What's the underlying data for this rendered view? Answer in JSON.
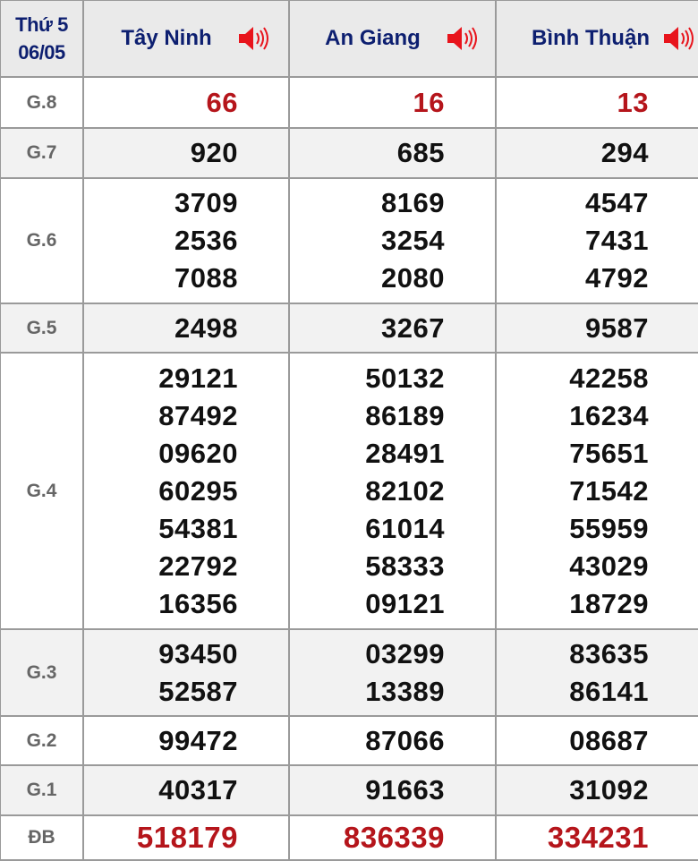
{
  "header": {
    "day": "Thứ 5",
    "date": "06/05",
    "provinces": [
      "Tây Ninh",
      "An Giang",
      "Bình Thuận"
    ],
    "speaker_icon": "speaker-icon",
    "header_color": "#0d1f70",
    "highlight_color": "#b5151b"
  },
  "rows": [
    {
      "label": "G.8",
      "values": [
        [
          "66"
        ],
        [
          "16"
        ],
        [
          "13"
        ]
      ],
      "highlight": true
    },
    {
      "label": "G.7",
      "values": [
        [
          "920"
        ],
        [
          "685"
        ],
        [
          "294"
        ]
      ]
    },
    {
      "label": "G.6",
      "values": [
        [
          "3709",
          "2536",
          "7088"
        ],
        [
          "8169",
          "3254",
          "2080"
        ],
        [
          "4547",
          "7431",
          "4792"
        ]
      ]
    },
    {
      "label": "G.5",
      "values": [
        [
          "2498"
        ],
        [
          "3267"
        ],
        [
          "9587"
        ]
      ]
    },
    {
      "label": "G.4",
      "values": [
        [
          "29121",
          "87492",
          "09620",
          "60295",
          "54381",
          "22792",
          "16356"
        ],
        [
          "50132",
          "86189",
          "28491",
          "82102",
          "61014",
          "58333",
          "09121"
        ],
        [
          "42258",
          "16234",
          "75651",
          "71542",
          "55959",
          "43029",
          "18729"
        ]
      ]
    },
    {
      "label": "G.3",
      "values": [
        [
          "93450",
          "52587"
        ],
        [
          "03299",
          "13389"
        ],
        [
          "83635",
          "86141"
        ]
      ]
    },
    {
      "label": "G.2",
      "values": [
        [
          "99472"
        ],
        [
          "87066"
        ],
        [
          "08687"
        ]
      ]
    },
    {
      "label": "G.1",
      "values": [
        [
          "40317"
        ],
        [
          "91663"
        ],
        [
          "31092"
        ]
      ]
    },
    {
      "label": "ĐB",
      "values": [
        [
          "518179"
        ],
        [
          "836339"
        ],
        [
          "334231"
        ]
      ],
      "highlight": true
    }
  ]
}
